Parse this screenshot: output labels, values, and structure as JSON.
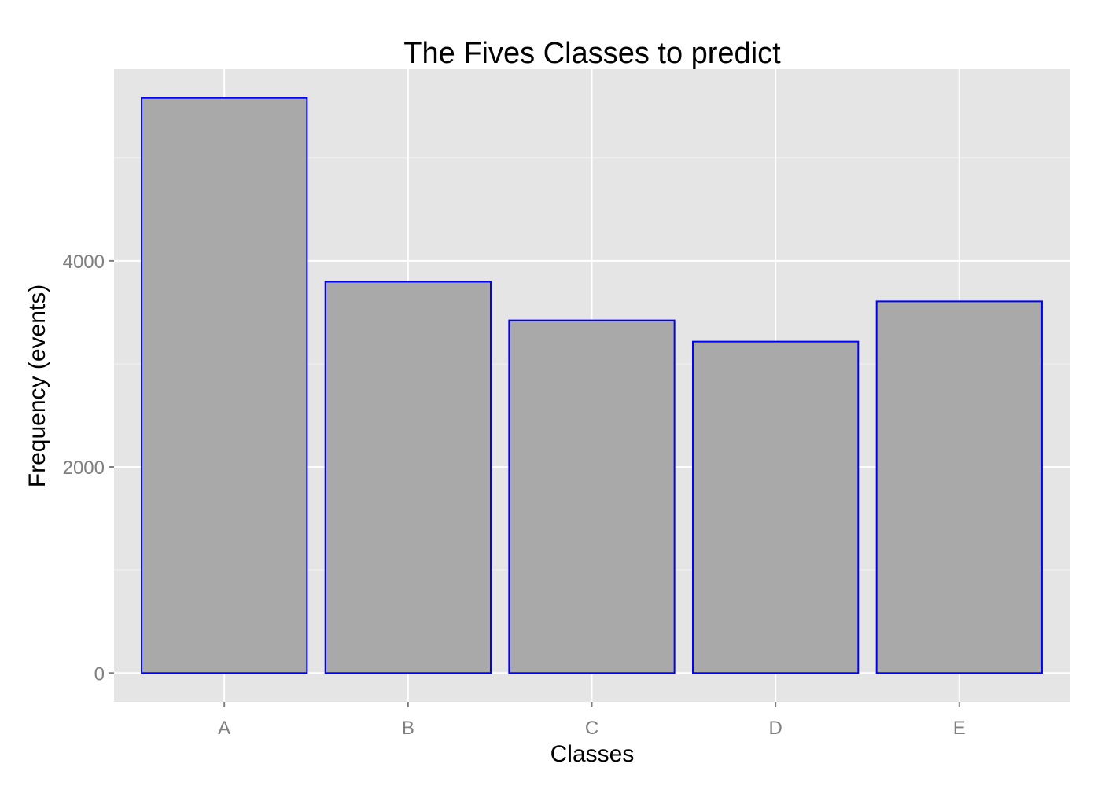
{
  "chart_data": {
    "type": "bar",
    "title": "The Fives Classes to predict",
    "xlabel": "Classes",
    "ylabel": "Frequency (events)",
    "categories": [
      "A",
      "B",
      "C",
      "D",
      "E"
    ],
    "values": [
      5580,
      3797,
      3422,
      3216,
      3607
    ],
    "ylim": [
      -280,
      5860
    ],
    "yticks": [
      0,
      2000,
      4000
    ],
    "grid": true,
    "legend": "none",
    "colors": {
      "panel_background": "#e5e5e5",
      "grid_major": "#ffffff",
      "grid_minor": "#f2f2f2",
      "bar_fill": "#a9a9a9",
      "bar_outline": "#0000ff",
      "tick_label": "#7f7f7f",
      "tick_mark": "#7f7f7f"
    }
  }
}
